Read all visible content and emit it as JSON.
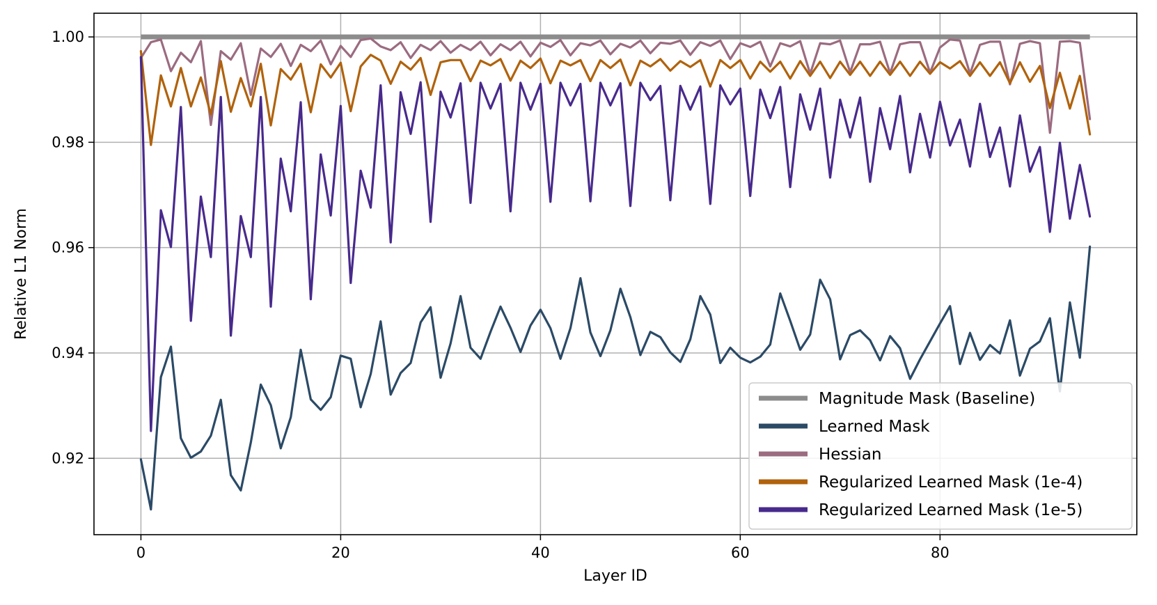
{
  "chart_data": {
    "type": "line",
    "title": "",
    "xlabel": "Layer ID",
    "ylabel": "Relative L1 Norm",
    "xlim": [
      -4.7,
      99.7
    ],
    "ylim": [
      0.9055,
      1.0045
    ],
    "xticks": [
      0,
      20,
      40,
      60,
      80
    ],
    "yticks": [
      0.92,
      0.94,
      0.96,
      0.98,
      1.0
    ],
    "ytick_labels": [
      "0.92",
      "0.94",
      "0.96",
      "0.98",
      "1.00"
    ],
    "grid": true,
    "legend_position": "lower-right",
    "series": [
      {
        "name": "Magnitude Mask (Baseline)",
        "color": "#8c8c8c",
        "x": [
          0,
          95
        ],
        "values": [
          1.0,
          1.0
        ]
      },
      {
        "name": "Learned Mask",
        "color": "#2b4a66",
        "x": [
          0,
          1,
          2,
          3,
          4,
          5,
          6,
          7,
          8,
          9,
          10,
          11,
          12,
          13,
          14,
          15,
          16,
          17,
          18,
          19,
          20,
          21,
          22,
          23,
          24,
          25,
          26,
          27,
          28,
          29,
          30,
          31,
          32,
          33,
          34,
          35,
          36,
          37,
          38,
          39,
          40,
          41,
          42,
          43,
          44,
          45,
          46,
          47,
          48,
          49,
          50,
          51,
          52,
          53,
          54,
          55,
          56,
          57,
          58,
          59,
          60,
          61,
          62,
          63,
          64,
          65,
          66,
          67,
          68,
          69,
          70,
          71,
          72,
          73,
          74,
          75,
          76,
          77,
          78,
          79,
          80,
          81,
          82,
          83,
          84,
          85,
          86,
          87,
          88,
          89,
          90,
          91,
          92,
          93,
          94,
          95
        ],
        "values": [
          0.9198,
          0.9103,
          0.9354,
          0.9412,
          0.9238,
          0.9201,
          0.9213,
          0.9243,
          0.9311,
          0.9168,
          0.9139,
          0.923,
          0.934,
          0.9301,
          0.9219,
          0.9278,
          0.9406,
          0.9312,
          0.9292,
          0.9316,
          0.9395,
          0.9389,
          0.9297,
          0.936,
          0.946,
          0.9321,
          0.9362,
          0.9381,
          0.9458,
          0.9487,
          0.9353,
          0.9418,
          0.9508,
          0.941,
          0.9389,
          0.944,
          0.9488,
          0.9448,
          0.9402,
          0.9452,
          0.9482,
          0.9447,
          0.9389,
          0.9447,
          0.9542,
          0.9439,
          0.9394,
          0.9443,
          0.9522,
          0.9468,
          0.9396,
          0.944,
          0.943,
          0.9401,
          0.9383,
          0.9426,
          0.9508,
          0.9473,
          0.9381,
          0.941,
          0.9391,
          0.9382,
          0.9393,
          0.9416,
          0.9513,
          0.9461,
          0.9406,
          0.9435,
          0.9539,
          0.9502,
          0.9388,
          0.9434,
          0.9443,
          0.9424,
          0.9386,
          0.9432,
          0.9409,
          0.9351,
          0.9388,
          0.9422,
          0.9456,
          0.9489,
          0.9379,
          0.9438,
          0.9387,
          0.9415,
          0.9399,
          0.9462,
          0.9357,
          0.9408,
          0.9422,
          0.9466,
          0.9327,
          0.9496,
          0.9391,
          0.9602
        ]
      },
      {
        "name": "Hessian",
        "color": "#9b6b80",
        "x": [
          0,
          1,
          2,
          3,
          4,
          5,
          6,
          7,
          8,
          9,
          10,
          11,
          12,
          13,
          14,
          15,
          16,
          17,
          18,
          19,
          20,
          21,
          22,
          23,
          24,
          25,
          26,
          27,
          28,
          29,
          30,
          31,
          32,
          33,
          34,
          35,
          36,
          37,
          38,
          39,
          40,
          41,
          42,
          43,
          44,
          45,
          46,
          47,
          48,
          49,
          50,
          51,
          52,
          53,
          54,
          55,
          56,
          57,
          58,
          59,
          60,
          61,
          62,
          63,
          64,
          65,
          66,
          67,
          68,
          69,
          70,
          71,
          72,
          73,
          74,
          75,
          76,
          77,
          78,
          79,
          80,
          81,
          82,
          83,
          84,
          85,
          86,
          87,
          88,
          89,
          90,
          91,
          92,
          93,
          94,
          95
        ],
        "values": [
          0.996,
          0.999,
          0.9995,
          0.9935,
          0.997,
          0.9952,
          0.9992,
          0.9833,
          0.9973,
          0.9957,
          0.9988,
          0.989,
          0.9978,
          0.9962,
          0.9987,
          0.9945,
          0.9985,
          0.9973,
          0.9993,
          0.9948,
          0.9983,
          0.9962,
          0.9994,
          0.9997,
          0.9982,
          0.9975,
          0.999,
          0.996,
          0.9985,
          0.9975,
          0.9992,
          0.997,
          0.9985,
          0.9975,
          0.9991,
          0.9965,
          0.9986,
          0.9975,
          0.9991,
          0.9963,
          0.9989,
          0.9981,
          0.9994,
          0.9965,
          0.9988,
          0.9984,
          0.9993,
          0.9967,
          0.9987,
          0.998,
          0.9993,
          0.9969,
          0.9989,
          0.9987,
          0.9993,
          0.9966,
          0.999,
          0.9983,
          0.9993,
          0.9958,
          0.9988,
          0.9981,
          0.9991,
          0.9944,
          0.9988,
          0.9982,
          0.9992,
          0.993,
          0.9988,
          0.9986,
          0.9993,
          0.9933,
          0.9986,
          0.9986,
          0.9991,
          0.9931,
          0.9986,
          0.999,
          0.999,
          0.9932,
          0.998,
          0.9995,
          0.9993,
          0.993,
          0.9985,
          0.9991,
          0.9991,
          0.991,
          0.9987,
          0.9992,
          0.9988,
          0.9818,
          0.9991,
          0.9992,
          0.9989,
          0.9844
        ]
      },
      {
        "name": "Regularized Learned Mask (1e-4)",
        "color": "#b0620c",
        "x": [
          0,
          1,
          2,
          3,
          4,
          5,
          6,
          7,
          8,
          9,
          10,
          11,
          12,
          13,
          14,
          15,
          16,
          17,
          18,
          19,
          20,
          21,
          22,
          23,
          24,
          25,
          26,
          27,
          28,
          29,
          30,
          31,
          32,
          33,
          34,
          35,
          36,
          37,
          38,
          39,
          40,
          41,
          42,
          43,
          44,
          45,
          46,
          47,
          48,
          49,
          50,
          51,
          52,
          53,
          54,
          55,
          56,
          57,
          58,
          59,
          60,
          61,
          62,
          63,
          64,
          65,
          66,
          67,
          68,
          69,
          70,
          71,
          72,
          73,
          74,
          75,
          76,
          77,
          78,
          79,
          80,
          81,
          82,
          83,
          84,
          85,
          86,
          87,
          88,
          89,
          90,
          91,
          92,
          93,
          94,
          95
        ],
        "values": [
          0.9973,
          0.9795,
          0.9927,
          0.9868,
          0.9941,
          0.9868,
          0.9923,
          0.9853,
          0.9954,
          0.9858,
          0.9922,
          0.9868,
          0.9949,
          0.9832,
          0.9939,
          0.9919,
          0.9949,
          0.9857,
          0.9948,
          0.9923,
          0.9951,
          0.9859,
          0.9944,
          0.9966,
          0.9955,
          0.9911,
          0.9953,
          0.9938,
          0.996,
          0.989,
          0.9952,
          0.9956,
          0.9956,
          0.9916,
          0.9955,
          0.9946,
          0.9958,
          0.9917,
          0.9955,
          0.9941,
          0.9959,
          0.9912,
          0.9955,
          0.9946,
          0.9956,
          0.9916,
          0.9956,
          0.9941,
          0.9957,
          0.9908,
          0.9955,
          0.9944,
          0.9958,
          0.9936,
          0.9954,
          0.9943,
          0.9956,
          0.9906,
          0.9956,
          0.9941,
          0.9956,
          0.9921,
          0.9953,
          0.9934,
          0.9953,
          0.9921,
          0.9954,
          0.9926,
          0.9953,
          0.9922,
          0.9953,
          0.9928,
          0.9953,
          0.9926,
          0.9953,
          0.9928,
          0.9953,
          0.9926,
          0.9953,
          0.993,
          0.9952,
          0.994,
          0.9954,
          0.9926,
          0.9952,
          0.9926,
          0.9952,
          0.9912,
          0.9952,
          0.9915,
          0.9945,
          0.9865,
          0.9932,
          0.9864,
          0.9926,
          0.9815
        ]
      },
      {
        "name": "Regularized Learned Mask (1e-5)",
        "color": "#482a8c",
        "x": [
          0,
          1,
          2,
          3,
          4,
          5,
          6,
          7,
          8,
          9,
          10,
          11,
          12,
          13,
          14,
          15,
          16,
          17,
          18,
          19,
          20,
          21,
          22,
          23,
          24,
          25,
          26,
          27,
          28,
          29,
          30,
          31,
          32,
          33,
          34,
          35,
          36,
          37,
          38,
          39,
          40,
          41,
          42,
          43,
          44,
          45,
          46,
          47,
          48,
          49,
          50,
          51,
          52,
          53,
          54,
          55,
          56,
          57,
          58,
          59,
          60,
          61,
          62,
          63,
          64,
          65,
          66,
          67,
          68,
          69,
          70,
          71,
          72,
          73,
          74,
          75,
          76,
          77,
          78,
          79,
          80,
          81,
          82,
          83,
          84,
          85,
          86,
          87,
          88,
          89,
          90,
          91,
          92,
          93,
          94,
          95
        ],
        "values": [
          0.9962,
          0.9252,
          0.9671,
          0.9601,
          0.9867,
          0.9461,
          0.9697,
          0.9582,
          0.9886,
          0.9433,
          0.966,
          0.9582,
          0.9886,
          0.9488,
          0.9769,
          0.9669,
          0.9876,
          0.9502,
          0.9777,
          0.9661,
          0.9869,
          0.9533,
          0.9746,
          0.9676,
          0.9908,
          0.961,
          0.9895,
          0.9816,
          0.9914,
          0.9649,
          0.9896,
          0.9847,
          0.9912,
          0.9685,
          0.9913,
          0.9864,
          0.9911,
          0.9669,
          0.9913,
          0.9862,
          0.9911,
          0.9687,
          0.9913,
          0.987,
          0.9911,
          0.9688,
          0.9913,
          0.987,
          0.9912,
          0.9679,
          0.9913,
          0.988,
          0.9907,
          0.969,
          0.9907,
          0.9862,
          0.9906,
          0.9683,
          0.9908,
          0.9872,
          0.9902,
          0.9698,
          0.99,
          0.9846,
          0.9905,
          0.9715,
          0.9891,
          0.9824,
          0.9902,
          0.9733,
          0.9881,
          0.9809,
          0.9885,
          0.9725,
          0.9865,
          0.9787,
          0.9888,
          0.9743,
          0.9854,
          0.9771,
          0.9877,
          0.9794,
          0.9843,
          0.9754,
          0.9873,
          0.9772,
          0.9828,
          0.9716,
          0.9851,
          0.9744,
          0.9791,
          0.963,
          0.9799,
          0.9655,
          0.9757,
          0.9659
        ]
      }
    ]
  }
}
